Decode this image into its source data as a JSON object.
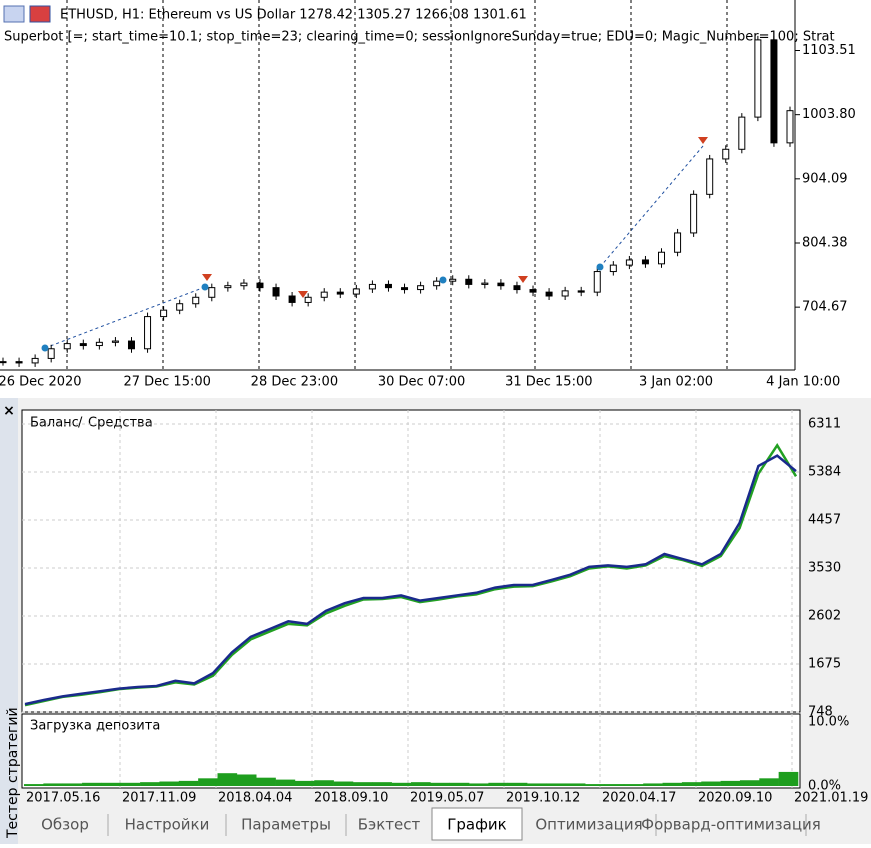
{
  "price_chart": {
    "type": "candlestick",
    "title": "ETHUSD, H1:  Ethereum vs US Dollar  1278.42 1305.27 1266.08 1301.61",
    "subtitle": "Superbot [=; start_time=10.1; stop_time=23; clearing_time=0; sessionIgnoreSunday=true; EDU=0; Magic_Number=100; Strat",
    "categories": [
      "26 Dec 2020",
      "27 Dec 15:00",
      "28 Dec 23:00",
      "30 Dec 07:00",
      "31 Dec 15:00",
      "3 Jan 02:00",
      "4 Jan 10:00"
    ],
    "values": [
      620,
      618,
      625,
      640,
      648,
      645,
      650,
      652,
      640,
      690,
      700,
      710,
      720,
      735,
      738,
      742,
      735,
      722,
      712,
      720,
      728,
      725,
      733,
      740,
      735,
      732,
      738,
      745,
      748,
      740,
      742,
      738,
      732,
      728,
      722,
      730,
      728,
      760,
      770,
      778,
      772,
      790,
      820,
      880,
      935,
      950,
      1000,
      1120,
      960,
      1010
    ],
    "ylim": [
      607,
      1182
    ],
    "yticks": [
      {
        "value": 704.67,
        "label": "704.67"
      },
      {
        "value": 804.38,
        "label": "804.38"
      },
      {
        "value": 904.09,
        "label": "904.09"
      },
      {
        "value": 1003.8,
        "label": "1003.80"
      },
      {
        "value": 1103.51,
        "label": "1103.51"
      }
    ]
  },
  "tester": {
    "panel_title": "Тестер стратегий",
    "balance_chart": {
      "type": "line",
      "series": [
        {
          "name": "Баланс",
          "color": "#1a2a8c",
          "values": [
            900,
            980,
            1050,
            1100,
            1150,
            1200,
            1230,
            1250,
            1350,
            1300,
            1500,
            1900,
            2200,
            2350,
            2500,
            2450,
            2700,
            2850,
            2950,
            2950,
            3000,
            2900,
            2950,
            3000,
            3050,
            3150,
            3200,
            3200,
            3300,
            3400,
            3550,
            3580,
            3550,
            3600,
            3800,
            3700,
            3600,
            3800,
            4400,
            5500,
            5700,
            5400
          ]
        },
        {
          "name": "Средства",
          "color": "#22a022",
          "values": [
            880,
            960,
            1040,
            1080,
            1130,
            1190,
            1220,
            1240,
            1320,
            1280,
            1450,
            1850,
            2150,
            2300,
            2450,
            2420,
            2650,
            2800,
            2920,
            2930,
            2970,
            2870,
            2920,
            2980,
            3020,
            3120,
            3170,
            3180,
            3270,
            3370,
            3520,
            3560,
            3520,
            3580,
            3760,
            3680,
            3570,
            3760,
            4300,
            5350,
            5900,
            5300
          ]
        }
      ],
      "ylim": [
        748,
        6581
      ],
      "yticks": [
        748,
        1675,
        2602,
        3530,
        4457,
        5384,
        6311
      ]
    },
    "load_chart": {
      "type": "bar",
      "title": "Загрузка депозита",
      "color": "#1e9e1e",
      "values": [
        0.3,
        0.4,
        0.4,
        0.5,
        0.5,
        0.5,
        0.6,
        0.7,
        0.8,
        1.2,
        2.0,
        1.8,
        1.3,
        1.0,
        0.8,
        0.9,
        0.7,
        0.6,
        0.6,
        0.5,
        0.6,
        0.5,
        0.5,
        0.4,
        0.5,
        0.5,
        0.4,
        0.4,
        0.4,
        0.3,
        0.3,
        0.3,
        0.4,
        0.5,
        0.6,
        0.7,
        0.8,
        0.9,
        1.2,
        2.2
      ],
      "ylim": [
        0,
        10
      ],
      "yticks": [
        {
          "value": 0,
          "label": "0.0%"
        },
        {
          "value": 10,
          "label": "10.0%"
        }
      ]
    },
    "x_labels": [
      "2017.05.16",
      "2017.11.09",
      "2018.04.04",
      "2018.09.10",
      "2019.05.07",
      "2019.10.12",
      "2020.04.17",
      "2020.09.10",
      "2021.01.19"
    ],
    "tabs": [
      "Обзор",
      "Настройки",
      "Параметры",
      "Бэктест",
      "График",
      "Оптимизация",
      "Форвард-оптимизация"
    ],
    "active_tab": 4
  }
}
